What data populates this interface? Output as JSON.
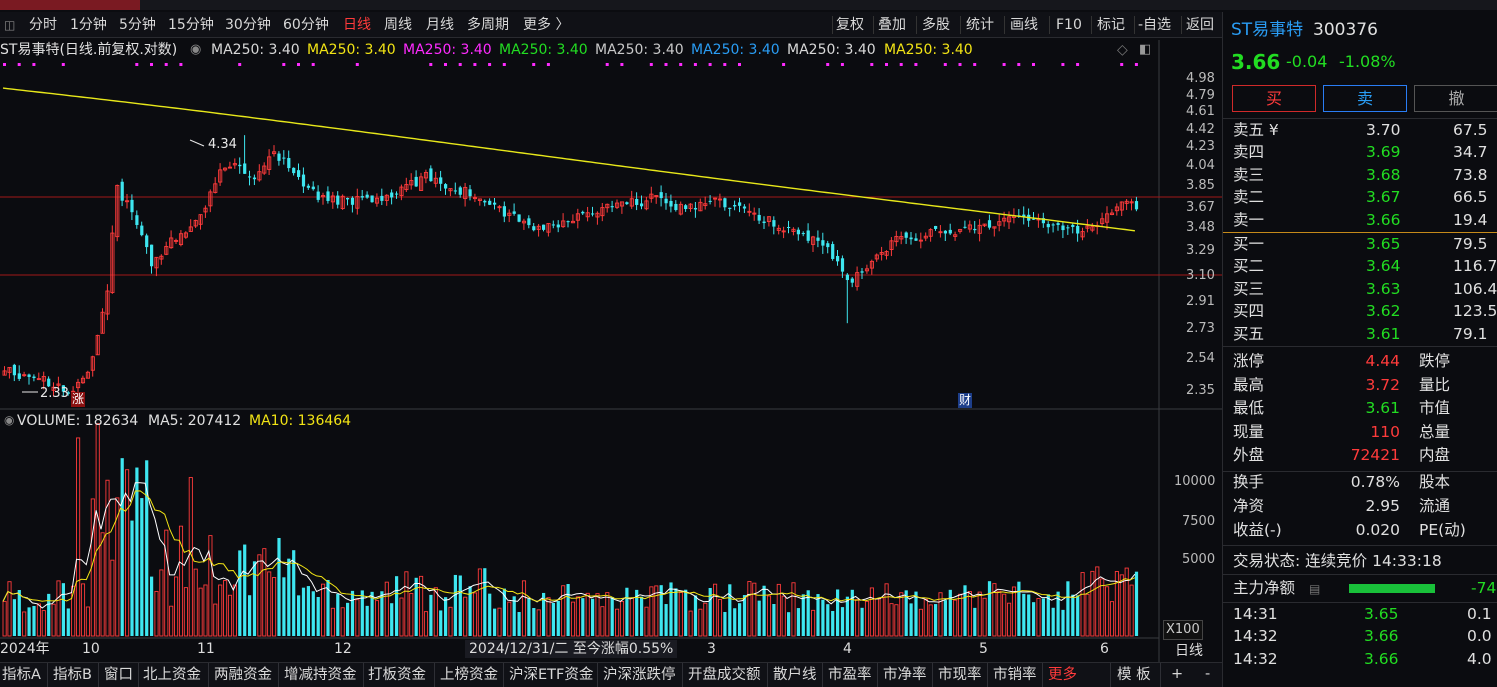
{
  "toolbar": {
    "periods": [
      "分时",
      "1分钟",
      "5分钟",
      "15分钟",
      "30分钟",
      "60分钟",
      "日线",
      "周线",
      "月线",
      "多周期",
      "更多 〉"
    ],
    "active_period": "日线",
    "actions": [
      "复权",
      "叠加",
      "多股",
      "统计",
      "画线",
      "F10",
      "标记",
      "-自选",
      "返回"
    ]
  },
  "legend": {
    "title": "ST易事特(日线.前复权.对数)",
    "items": [
      {
        "text": "MA250: 3.40",
        "color": "#d8d8d8"
      },
      {
        "text": "MA250: 3.40",
        "color": "#f2e415"
      },
      {
        "text": "MA250: 3.40",
        "color": "#ff2bff"
      },
      {
        "text": "MA250: 3.40",
        "color": "#22dd22"
      },
      {
        "text": "MA250: 3.40",
        "color": "#c8c8c8"
      },
      {
        "text": "MA250: 3.40",
        "color": "#2a9df4"
      },
      {
        "text": "MA250: 3.40",
        "color": "#d8d8d8"
      },
      {
        "text": "MA250: 3.40",
        "color": "#f2e415"
      }
    ]
  },
  "price_axis": [
    "4.98",
    "4.79",
    "4.61",
    "4.42",
    "4.23",
    "4.04",
    "3.85",
    "3.67",
    "3.48",
    "3.29",
    "3.10",
    "2.91",
    "2.73",
    "2.54",
    "2.35"
  ],
  "annotations": {
    "high_label": "4.34",
    "low_label": "2.33",
    "limit_up_badge": "涨",
    "finance_badge": "财"
  },
  "x_axis": {
    "labels": [
      "2024年",
      "10",
      "11",
      "12",
      "2024/12/31/二  至今涨幅0.55%",
      "3",
      "4",
      "5",
      "6"
    ]
  },
  "volume_legend": {
    "volume": "VOLUME: 182634",
    "ma5": "MA5: 207412",
    "ma10": "MA10: 136464"
  },
  "volume_axis": [
    "10000",
    "7500",
    "5000"
  ],
  "volume_unit": "X100",
  "colors": {
    "up": "#ff3b3b",
    "down": "#3ee6f0",
    "ma250": "#e8e81a",
    "vol_ma5": "#ffffff",
    "vol_ma10": "#f2e415"
  },
  "quote": {
    "name": "ST易事特",
    "code": "300376",
    "price": "3.66",
    "change": "-0.04",
    "change_pct": "-1.08%",
    "buy_label": "买",
    "sell_label": "卖",
    "cancel_label": "撤",
    "asks": [
      {
        "label": "卖五 ¥",
        "price": "3.70",
        "vol": "67.5"
      },
      {
        "label": "卖四",
        "price": "3.69",
        "vol": "34.7"
      },
      {
        "label": "卖三",
        "price": "3.68",
        "vol": "73.8"
      },
      {
        "label": "卖二",
        "price": "3.67",
        "vol": "66.5"
      },
      {
        "label": "卖一",
        "price": "3.66",
        "vol": "19.4"
      }
    ],
    "bids": [
      {
        "label": "买一",
        "price": "3.65",
        "vol": "79.5"
      },
      {
        "label": "买二",
        "price": "3.64",
        "vol": "116.7"
      },
      {
        "label": "买三",
        "price": "3.63",
        "vol": "106.4"
      },
      {
        "label": "买四",
        "price": "3.62",
        "vol": "123.5"
      },
      {
        "label": "买五",
        "price": "3.61",
        "vol": "79.1"
      }
    ],
    "stats": [
      {
        "l": "涨停",
        "v": "4.44",
        "vc": "#ff3b3b",
        "r": "跌停"
      },
      {
        "l": "最高",
        "v": "3.72",
        "vc": "#ff3b3b",
        "r": "量比"
      },
      {
        "l": "最低",
        "v": "3.61",
        "vc": "#22dd22",
        "r": "市值"
      },
      {
        "l": "现量",
        "v": "110",
        "vc": "#ff3b3b",
        "r": "总量"
      },
      {
        "l": "外盘",
        "v": "72421",
        "vc": "#ff3b3b",
        "r": "内盘"
      }
    ],
    "stats2": [
      {
        "l": "换手",
        "v": "0.78%",
        "r": "股本"
      },
      {
        "l": "净资",
        "v": "2.95",
        "r": "流通"
      },
      {
        "l": "收益(-)",
        "v": "0.020",
        "r": "PE(动)"
      }
    ],
    "status": "交易状态: 连续竞价 14:33:18",
    "net_label": "主力净额",
    "net_value": "-74",
    "ticks": [
      {
        "time": "14:31",
        "price": "3.65",
        "vol": "0.1"
      },
      {
        "time": "14:32",
        "price": "3.66",
        "vol": "0.0"
      },
      {
        "time": "14:32",
        "price": "3.66",
        "vol": "4.0"
      }
    ]
  },
  "bottom_tabs": [
    "指标A",
    "指标B",
    "窗口",
    "北上资金",
    "两融资金",
    "增减持资金",
    "打板资金",
    "上榜资金",
    "沪深ETF资金",
    "沪深涨跌停",
    "开盘成交额",
    "散户线",
    "市盈率",
    "市净率",
    "市现率",
    "市销率",
    "更多"
  ],
  "bottom_right": {
    "template": "模 板",
    "period": "日线",
    "plus": "+",
    "minus": "-"
  }
}
